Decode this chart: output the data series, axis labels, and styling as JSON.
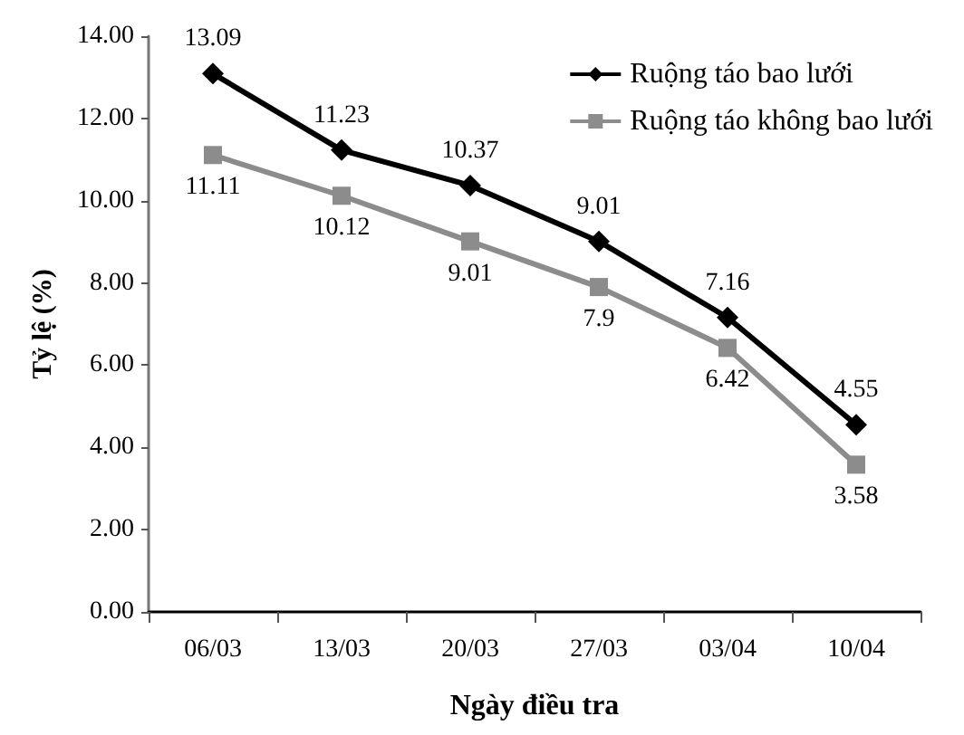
{
  "chart_data": {
    "type": "line",
    "xlabel": "Ngày điều tra",
    "ylabel": "Tỷ lệ (%)",
    "categories": [
      "06/03",
      "13/03",
      "20/03",
      "27/03",
      "03/04",
      "10/04"
    ],
    "series": [
      {
        "name": "Ruộng táo bao lưới",
        "color": "#000000",
        "marker": "diamond",
        "values": [
          13.09,
          11.23,
          10.37,
          9.01,
          7.16,
          4.55
        ]
      },
      {
        "name": "Ruộng táo không bao lưới",
        "color": "#8c8c8c",
        "marker": "square",
        "values": [
          11.11,
          10.12,
          9.01,
          7.9,
          6.42,
          3.58
        ]
      }
    ],
    "ylim": [
      0,
      14
    ],
    "yticks": [
      {
        "value": 0,
        "label": "0.00"
      },
      {
        "value": 2,
        "label": "2.00"
      },
      {
        "value": 4,
        "label": "4.00"
      },
      {
        "value": 6,
        "label": "6.00"
      },
      {
        "value": 8,
        "label": "8.00"
      },
      {
        "value": 10,
        "label": "10.00"
      },
      {
        "value": 12,
        "label": "12.00"
      },
      {
        "value": 14,
        "label": "14.00"
      }
    ],
    "data_labels": true,
    "grid": false,
    "legend": "top right",
    "line_style": "solid"
  }
}
